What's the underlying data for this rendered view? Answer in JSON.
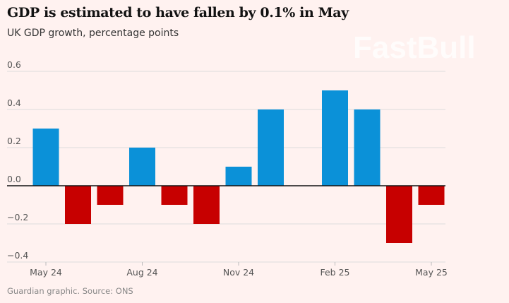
{
  "chart_data": {
    "type": "bar",
    "title": "GDP is estimated to have fallen by 0.1% in May",
    "subtitle": "UK GDP growth, percentage points",
    "source": "Guardian graphic. Source: ONS",
    "categories": [
      "May 24",
      "Jun 24",
      "Jul 24",
      "Aug 24",
      "Sep 24",
      "Oct 24",
      "Nov 24",
      "Dec 24",
      "Jan 25",
      "Feb 25",
      "Mar 25",
      "Apr 25",
      "May 25"
    ],
    "values": [
      0.3,
      -0.2,
      -0.1,
      0.2,
      -0.1,
      -0.2,
      0.1,
      0.4,
      0.0,
      0.5,
      0.4,
      -0.3,
      -0.1
    ],
    "x_tick_labels": [
      {
        "index": 0,
        "label": "May 24"
      },
      {
        "index": 3,
        "label": "Aug 24"
      },
      {
        "index": 6,
        "label": "Nov 24"
      },
      {
        "index": 9,
        "label": "Feb 25"
      },
      {
        "index": 12,
        "label": "May 25"
      }
    ],
    "y_ticks": [
      0.6,
      0.4,
      0.2,
      0.0,
      -0.2,
      -0.4
    ],
    "y_tick_labels": [
      "0.6",
      "0.4",
      "0.2",
      "0.0",
      "−0.2",
      "−0.4"
    ],
    "ylim": [
      -0.4,
      0.6
    ],
    "grid": true,
    "colors": {
      "positive": "#0b91d8",
      "negative": "#c70000",
      "zero_line": "#121212",
      "grid": "#dcdcdc"
    }
  },
  "watermark": "FastBull"
}
